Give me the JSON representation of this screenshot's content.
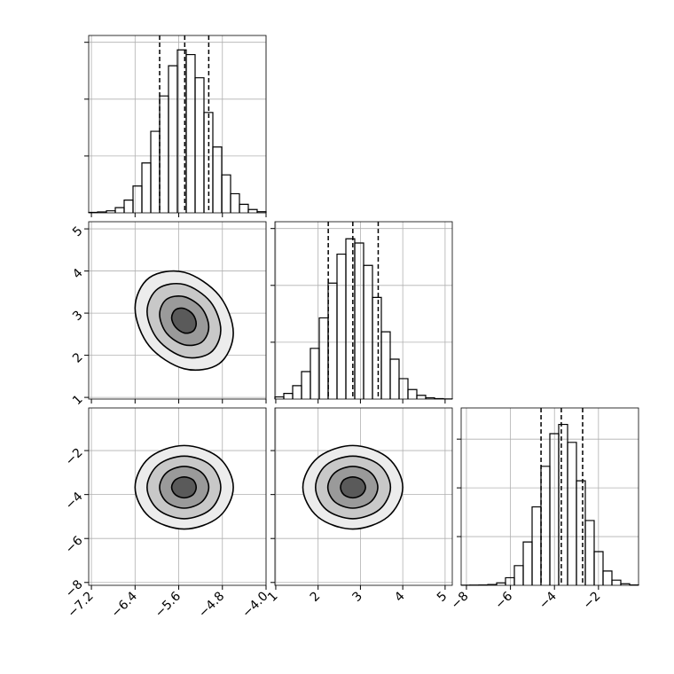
{
  "chart_data": [
    {
      "type": "hist",
      "bins": [
        -7.25,
        -7.0875,
        -6.925,
        -6.7625,
        -6.6,
        -6.4375,
        -6.275,
        -6.1125,
        -5.95,
        -5.7875,
        -5.625,
        -5.4625,
        -5.3,
        -5.1375,
        -4.975,
        -4.8125,
        -4.65,
        -4.4875,
        -4.325,
        -4.1625,
        -4.0
      ],
      "counts": [
        4,
        8,
        18,
        46,
        112,
        236,
        439,
        717,
        1028,
        1294,
        1433,
        1392,
        1188,
        883,
        579,
        334,
        168,
        75,
        29,
        10
      ],
      "quantiles": [
        -5.95,
        -5.49,
        -5.05
      ],
      "xlim": [
        -7.25,
        -4.0
      ],
      "ylim": [
        0,
        1560
      ],
      "xticks": [
        -7.2,
        -6.4,
        -5.6,
        -4.8,
        -4.0
      ],
      "yticks": [
        500,
        1000,
        1500
      ],
      "grid": true
    },
    {
      "type": "contour",
      "levels": [
        {
          "x": [
            -4.6,
            -4.86,
            -5.5,
            -6.14,
            -6.4,
            -6.14,
            -5.5,
            -4.86
          ],
          "y": [
            2.53,
            3.42,
            3.97,
            3.84,
            3.12,
            2.22,
            1.68,
            1.8
          ]
        },
        {
          "x": [
            -4.83,
            -5.02,
            -5.5,
            -5.98,
            -6.18,
            -5.98,
            -5.5,
            -5.02
          ],
          "y": [
            2.6,
            3.27,
            3.68,
            3.58,
            3.04,
            2.37,
            1.96,
            2.06
          ]
        },
        {
          "x": [
            -5.05,
            -5.18,
            -5.5,
            -5.82,
            -5.95,
            -5.82,
            -5.5,
            -5.18
          ],
          "y": [
            2.67,
            3.12,
            3.39,
            3.33,
            2.97,
            2.52,
            2.25,
            2.31
          ]
        },
        {
          "x": [
            -5.28,
            -5.34,
            -5.5,
            -5.66,
            -5.73,
            -5.66,
            -5.5,
            -5.34
          ],
          "y": [
            2.75,
            2.97,
            3.11,
            3.08,
            2.89,
            2.67,
            2.53,
            2.57
          ]
        }
      ],
      "xlim": [
        -7.25,
        -4.0
      ],
      "ylim": [
        0.96,
        5.17
      ],
      "xticks": [
        -7.2,
        -6.4,
        -5.6,
        -4.8,
        -4.0
      ],
      "yticks": [
        1,
        2,
        3,
        4,
        5
      ],
      "grid": true
    },
    {
      "type": "contour",
      "levels": [
        {
          "x": [
            -4.6,
            -4.86,
            -5.5,
            -6.14,
            -6.4,
            -6.14,
            -5.5,
            -4.86
          ],
          "y": [
            -3.67,
            -2.33,
            -1.77,
            -2.33,
            -3.67,
            -5.01,
            -5.57,
            -5.01
          ]
        },
        {
          "x": [
            -4.83,
            -5.02,
            -5.5,
            -5.98,
            -6.18,
            -5.98,
            -5.5,
            -5.02
          ],
          "y": [
            -3.67,
            -2.66,
            -2.25,
            -2.66,
            -3.67,
            -4.68,
            -5.1,
            -4.68
          ]
        },
        {
          "x": [
            -5.05,
            -5.18,
            -5.5,
            -5.82,
            -5.95,
            -5.82,
            -5.5,
            -5.18
          ],
          "y": [
            -3.67,
            -3.0,
            -2.72,
            -3.0,
            -3.67,
            -4.34,
            -4.62,
            -4.34
          ]
        },
        {
          "x": [
            -5.28,
            -5.34,
            -5.5,
            -5.66,
            -5.73,
            -5.66,
            -5.5,
            -5.34
          ],
          "y": [
            -3.67,
            -3.33,
            -3.2,
            -3.33,
            -3.67,
            -4.01,
            -4.15,
            -4.01
          ]
        }
      ],
      "xlim": [
        -7.25,
        -4.0
      ],
      "ylim": [
        -8.13,
        -0.06
      ],
      "xticks": [
        {
          "value": -7.2,
          "label": "−7.2"
        },
        {
          "value": -6.4,
          "label": "−6.4"
        },
        {
          "value": -5.6,
          "label": "−5.6"
        },
        {
          "value": -4.8,
          "label": "−4.8"
        },
        {
          "value": -4.0,
          "label": "−4.0"
        }
      ],
      "yticks": [
        {
          "value": -8,
          "label": "−8"
        },
        {
          "value": -6,
          "label": "−6"
        },
        {
          "value": -4,
          "label": "−4"
        },
        {
          "value": -2,
          "label": "−2"
        }
      ],
      "grid": true
    },
    {
      "type": "hist",
      "bins": [
        0.98,
        1.1895,
        1.399,
        1.6085,
        1.818,
        2.0275,
        2.237,
        2.4465,
        2.656,
        2.8655,
        3.075,
        3.2845,
        3.494,
        3.7035,
        3.913,
        4.1225,
        4.332,
        4.5415,
        4.751,
        4.9605,
        5.17
      ],
      "counts": [
        19,
        50,
        118,
        242,
        446,
        714,
        1020,
        1275,
        1410,
        1373,
        1176,
        894,
        592,
        351,
        180,
        84,
        33,
        11,
        4,
        1
      ],
      "quantiles": [
        2.24,
        2.82,
        3.42
      ],
      "xlim": [
        0.98,
        5.17
      ],
      "ylim": [
        0,
        1560
      ],
      "xticks": [
        1,
        2,
        3,
        4,
        5
      ],
      "yticks": [
        500,
        1000,
        1500
      ],
      "grid": true
    },
    {
      "type": "contour",
      "levels": [
        {
          "x": [
            4.0,
            3.65,
            2.82,
            1.99,
            1.64,
            1.99,
            2.82,
            3.65
          ],
          "y": [
            -3.67,
            -2.33,
            -1.77,
            -2.33,
            -3.67,
            -5.01,
            -5.57,
            -5.01
          ]
        },
        {
          "x": [
            3.71,
            3.45,
            2.82,
            2.19,
            1.94,
            2.19,
            2.82,
            3.45
          ],
          "y": [
            -3.67,
            -2.66,
            -2.25,
            -2.66,
            -3.67,
            -4.68,
            -5.1,
            -4.68
          ]
        },
        {
          "x": [
            3.41,
            3.24,
            2.82,
            2.4,
            2.23,
            2.4,
            2.82,
            3.24
          ],
          "y": [
            -3.67,
            -3.0,
            -2.72,
            -3.0,
            -3.67,
            -4.34,
            -4.62,
            -4.34
          ]
        },
        {
          "x": [
            3.12,
            3.03,
            2.82,
            2.61,
            2.53,
            2.61,
            2.82,
            3.03
          ],
          "y": [
            -3.67,
            -3.33,
            -3.2,
            -3.33,
            -3.67,
            -4.01,
            -4.15,
            -4.01
          ]
        }
      ],
      "xlim": [
        0.98,
        5.17
      ],
      "ylim": [
        -8.13,
        -0.06
      ],
      "xticks": [
        1,
        2,
        3,
        4,
        5
      ],
      "yticks": [
        -8,
        -6,
        -4,
        -2
      ],
      "grid": true
    },
    {
      "type": "hist",
      "bins": [
        -8.24,
        -7.837,
        -7.434,
        -7.031,
        -6.628,
        -6.225,
        -5.822,
        -5.419,
        -5.016,
        -4.613,
        -4.21,
        -3.807,
        -3.404,
        -3.001,
        -2.598,
        -2.195,
        -1.792,
        -1.389,
        -0.986,
        -0.583,
        -0.18
      ],
      "counts": [
        1,
        2,
        4,
        8,
        25,
        78,
        202,
        445,
        805,
        1221,
        1556,
        1651,
        1467,
        1073,
        665,
        346,
        147,
        53,
        16,
        4
      ],
      "quantiles": [
        -4.61,
        -3.69,
        -2.72
      ],
      "xlim": [
        -8.24,
        -0.18
      ],
      "ylim": [
        0,
        1820
      ],
      "xticks": [
        {
          "value": -8,
          "label": "−8"
        },
        {
          "value": -6,
          "label": "−6"
        },
        {
          "value": -4,
          "label": "−4"
        },
        {
          "value": -2,
          "label": "−2"
        }
      ],
      "yticks": [
        500,
        1000,
        1500
      ],
      "grid": true
    }
  ]
}
